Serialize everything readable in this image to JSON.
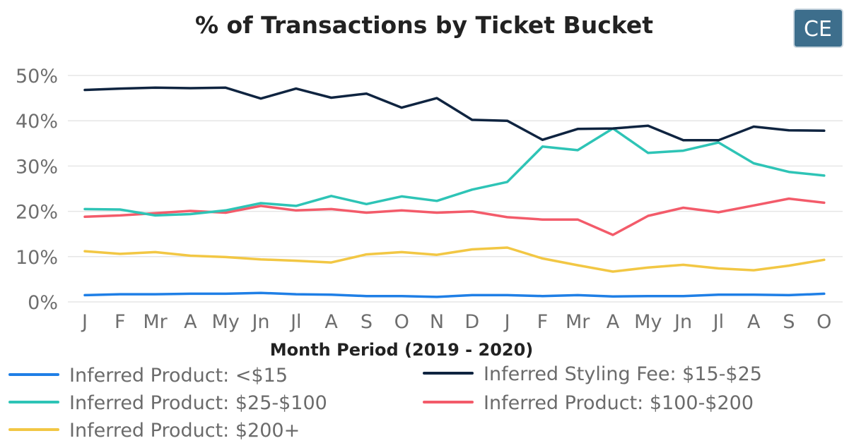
{
  "chart_data": {
    "type": "line",
    "title": "% of Transactions by Ticket Bucket",
    "xlabel": "Month Period (2019 - 2020)",
    "ylabel": "",
    "ylim": [
      0,
      50
    ],
    "yticks": [
      "0%",
      "10%",
      "20%",
      "30%",
      "40%",
      "50%"
    ],
    "grid": true,
    "legend_position": "bottom",
    "categories": [
      "J",
      "F",
      "Mr",
      "A",
      "My",
      "Jn",
      "Jl",
      "A",
      "S",
      "O",
      "N",
      "D",
      "J",
      "F",
      "Mr",
      "A",
      "My",
      "Jn",
      "Jl",
      "A",
      "S",
      "O"
    ],
    "series": [
      {
        "name": "Inferred Product: <$15",
        "color": "#1f7fe6",
        "values": [
          1.5,
          1.7,
          1.7,
          1.8,
          1.8,
          2.0,
          1.7,
          1.6,
          1.3,
          1.3,
          1.1,
          1.5,
          1.5,
          1.3,
          1.5,
          1.2,
          1.3,
          1.3,
          1.6,
          1.6,
          1.5,
          1.8
        ]
      },
      {
        "name": "Inferred Styling Fee:  $15-$25",
        "color": "#0f2440",
        "values": [
          46.8,
          47.1,
          47.3,
          47.2,
          47.3,
          44.9,
          47.1,
          45.1,
          46.0,
          42.9,
          45.0,
          40.2,
          40.0,
          35.8,
          38.2,
          38.3,
          38.9,
          35.7,
          35.7,
          38.7,
          37.9,
          37.8
        ]
      },
      {
        "name": "Inferred Product: $25-$100",
        "color": "#2ec4b6",
        "values": [
          20.5,
          20.4,
          19.1,
          19.4,
          20.2,
          21.8,
          21.2,
          23.4,
          21.6,
          23.3,
          22.3,
          24.8,
          26.5,
          34.3,
          33.5,
          38.3,
          32.9,
          33.4,
          35.2,
          30.6,
          28.7,
          27.9
        ]
      },
      {
        "name": "Inferred Product: $100-$200",
        "color": "#f35b6a",
        "values": [
          18.8,
          19.1,
          19.6,
          20.1,
          19.7,
          21.2,
          20.2,
          20.5,
          19.7,
          20.2,
          19.7,
          20.0,
          18.7,
          18.2,
          18.2,
          14.8,
          19.0,
          20.8,
          19.8,
          21.3,
          22.8,
          21.9
        ]
      },
      {
        "name": "Inferred Product: $200+",
        "color": "#f2c744",
        "values": [
          11.2,
          10.6,
          11.0,
          10.2,
          9.9,
          9.4,
          9.1,
          8.7,
          10.5,
          11.0,
          10.4,
          11.6,
          12.0,
          9.6,
          8.1,
          6.7,
          7.6,
          8.2,
          7.4,
          7.0,
          8.0,
          9.3
        ]
      }
    ]
  },
  "logo": {
    "text": "CE",
    "bg_color": "#3d6e8c"
  }
}
